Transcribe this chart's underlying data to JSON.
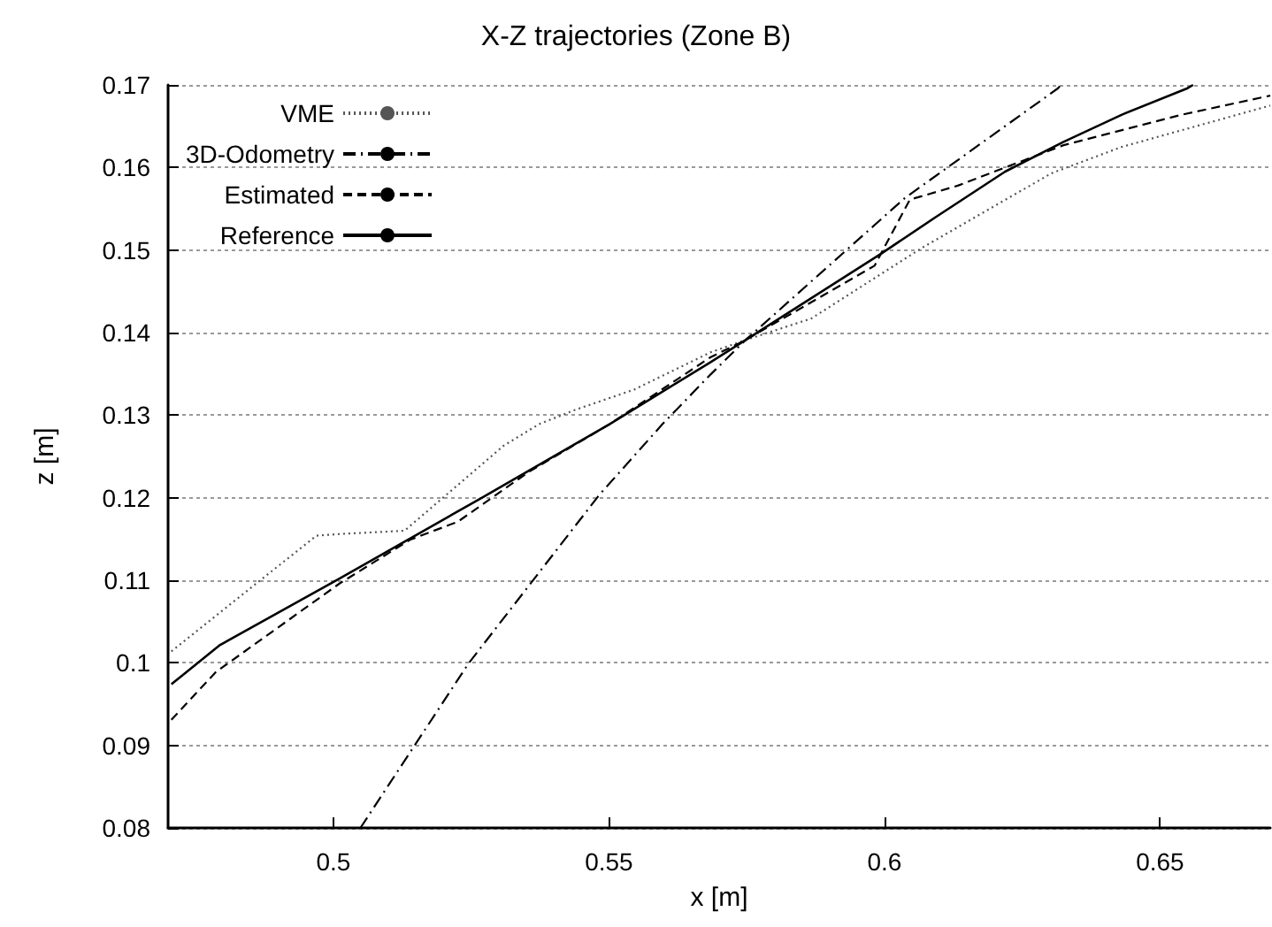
{
  "chart_data": {
    "type": "line",
    "title": "X-Z trajectories (Zone B)",
    "xlabel": "x [m]",
    "ylabel": "z [m]",
    "xlim": [
      0.47,
      0.67
    ],
    "xticks": [
      0.5,
      0.55,
      0.6,
      0.65
    ],
    "ylim": [
      0.08,
      0.17
    ],
    "yticks": [
      0.08,
      0.09,
      0.1,
      0.11,
      0.12,
      0.13,
      0.14,
      0.15,
      0.16,
      0.17
    ],
    "grid": "y",
    "legend": "top left",
    "marker": "none",
    "series": [
      {
        "name": "VME",
        "color": "#555555",
        "line_style": "dotted",
        "x": [
          0.4706,
          0.4969,
          0.5011,
          0.5129,
          0.5309,
          0.5373,
          0.5437,
          0.5546,
          0.5684,
          0.5748,
          0.5867,
          0.6069,
          0.6303,
          0.6431,
          0.67
        ],
        "values": [
          0.1014,
          0.1154,
          0.1156,
          0.116,
          0.1263,
          0.1289,
          0.1306,
          0.1331,
          0.1376,
          0.1391,
          0.1417,
          0.1503,
          0.1593,
          0.1625,
          0.1675
        ]
      },
      {
        "name": "3D-Odometry",
        "color": "#000000",
        "line_style": "dashdot",
        "x": [
          0.5049,
          0.5245,
          0.5482,
          0.5597,
          0.5684,
          0.5748,
          0.6037,
          0.6315,
          0.632
        ],
        "values": [
          0.08,
          0.0999,
          0.1203,
          0.1289,
          0.1349,
          0.1391,
          0.1563,
          0.1696,
          0.17
        ]
      },
      {
        "name": "Estimated",
        "color": "#000000",
        "line_style": "dashed",
        "x": [
          0.4706,
          0.4787,
          0.5011,
          0.5139,
          0.5226,
          0.5354,
          0.5501,
          0.5684,
          0.5748,
          0.5982,
          0.6046,
          0.6133,
          0.6325,
          0.654,
          0.67
        ],
        "values": [
          0.0931,
          0.0989,
          0.1096,
          0.1149,
          0.1171,
          0.1231,
          0.1289,
          0.137,
          0.1391,
          0.1481,
          0.1561,
          0.1578,
          0.1627,
          0.1664,
          0.1687
        ]
      },
      {
        "name": "Reference",
        "color": "#000000",
        "line_style": "solid",
        "x": [
          0.4706,
          0.4793,
          0.5011,
          0.5267,
          0.5501,
          0.5684,
          0.5748,
          0.5995,
          0.6091,
          0.6219,
          0.6325,
          0.6431,
          0.655,
          0.656
        ],
        "values": [
          0.0974,
          0.1021,
          0.1102,
          0.1199,
          0.1289,
          0.1364,
          0.1391,
          0.1496,
          0.1539,
          0.1595,
          0.1631,
          0.1664,
          0.1696,
          0.17
        ]
      }
    ]
  }
}
